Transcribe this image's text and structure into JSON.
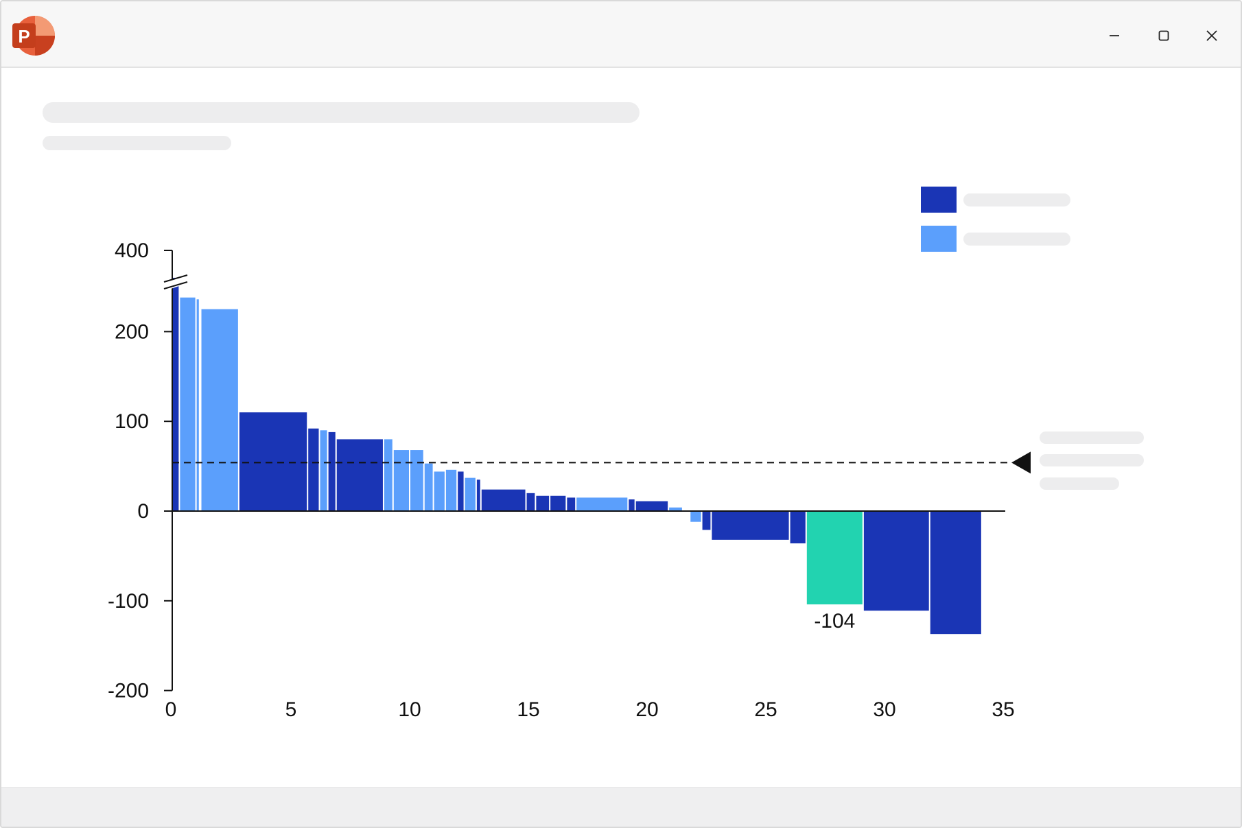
{
  "window": {
    "app_icon": "powerpoint-icon",
    "controls": [
      "minimize-icon",
      "maximize-icon",
      "close-icon"
    ]
  },
  "colors": {
    "series_dark": "#1a35b5",
    "series_light": "#5b9ffc",
    "highlight": "#22d3b0",
    "axis": "#111111",
    "placeholder": "#ededee"
  },
  "chart_data": {
    "type": "bar",
    "subtype": "variable-width waterfall-style bar chart",
    "x_axis": {
      "min": 0,
      "max": 35,
      "ticks": [
        0,
        5,
        10,
        15,
        20,
        25,
        30,
        35
      ]
    },
    "y_axis": {
      "min": -200,
      "max": 400,
      "broken": true,
      "break_between": [
        260,
        400
      ],
      "ticks": [
        -200,
        -100,
        0,
        100,
        200,
        400
      ],
      "tick_labels": [
        "-200",
        "-100",
        "0",
        "100",
        "200",
        "400"
      ]
    },
    "reference_line": {
      "value": 54,
      "style": "dashed",
      "marker": "left-pointing triangle"
    },
    "legend": {
      "placement": "top-right",
      "entries": [
        {
          "series": "dark"
        },
        {
          "series": "light"
        }
      ]
    },
    "bars": [
      {
        "x0": 0.0,
        "x1": 0.3,
        "value": 260,
        "series": "dark"
      },
      {
        "x0": 0.3,
        "x1": 1.0,
        "value": 238,
        "series": "light"
      },
      {
        "x0": 1.0,
        "x1": 1.15,
        "value": 236,
        "series": "light"
      },
      {
        "x0": 1.2,
        "x1": 2.8,
        "value": 225,
        "series": "light"
      },
      {
        "x0": 2.8,
        "x1": 5.7,
        "value": 110,
        "series": "dark"
      },
      {
        "x0": 5.7,
        "x1": 6.2,
        "value": 92,
        "series": "dark"
      },
      {
        "x0": 6.2,
        "x1": 6.55,
        "value": 90,
        "series": "light"
      },
      {
        "x0": 6.55,
        "x1": 6.9,
        "value": 88,
        "series": "dark"
      },
      {
        "x0": 6.9,
        "x1": 8.9,
        "value": 80,
        "series": "dark"
      },
      {
        "x0": 8.9,
        "x1": 9.3,
        "value": 80,
        "series": "light"
      },
      {
        "x0": 9.3,
        "x1": 10.0,
        "value": 68,
        "series": "light"
      },
      {
        "x0": 10.0,
        "x1": 10.6,
        "value": 68,
        "series": "light"
      },
      {
        "x0": 10.6,
        "x1": 11.0,
        "value": 53,
        "series": "light"
      },
      {
        "x0": 11.0,
        "x1": 11.5,
        "value": 44,
        "series": "light"
      },
      {
        "x0": 11.5,
        "x1": 12.0,
        "value": 46,
        "series": "light"
      },
      {
        "x0": 12.0,
        "x1": 12.3,
        "value": 44,
        "series": "dark"
      },
      {
        "x0": 12.3,
        "x1": 12.8,
        "value": 37,
        "series": "light"
      },
      {
        "x0": 12.8,
        "x1": 13.0,
        "value": 35,
        "series": "dark"
      },
      {
        "x0": 13.0,
        "x1": 14.9,
        "value": 24,
        "series": "dark"
      },
      {
        "x0": 14.9,
        "x1": 15.3,
        "value": 20,
        "series": "dark"
      },
      {
        "x0": 15.3,
        "x1": 15.9,
        "value": 17,
        "series": "dark"
      },
      {
        "x0": 15.9,
        "x1": 16.6,
        "value": 17,
        "series": "dark"
      },
      {
        "x0": 16.6,
        "x1": 17.0,
        "value": 15,
        "series": "dark"
      },
      {
        "x0": 17.0,
        "x1": 19.2,
        "value": 15,
        "series": "light"
      },
      {
        "x0": 19.2,
        "x1": 19.5,
        "value": 13,
        "series": "dark"
      },
      {
        "x0": 19.5,
        "x1": 20.9,
        "value": 11,
        "series": "dark"
      },
      {
        "x0": 20.9,
        "x1": 21.5,
        "value": 4,
        "series": "light"
      },
      {
        "x0": 21.8,
        "x1": 22.3,
        "value": -12,
        "series": "light"
      },
      {
        "x0": 22.3,
        "x1": 22.7,
        "value": -21,
        "series": "dark"
      },
      {
        "x0": 22.7,
        "x1": 26.0,
        "value": -32,
        "series": "dark"
      },
      {
        "x0": 26.0,
        "x1": 26.7,
        "value": -36,
        "series": "dark"
      },
      {
        "x0": 26.7,
        "x1": 29.1,
        "value": -104,
        "series": "highlight",
        "label": "-104"
      },
      {
        "x0": 29.1,
        "x1": 31.9,
        "value": -111,
        "series": "dark"
      },
      {
        "x0": 31.9,
        "x1": 34.1,
        "value": -137,
        "series": "dark"
      }
    ]
  }
}
